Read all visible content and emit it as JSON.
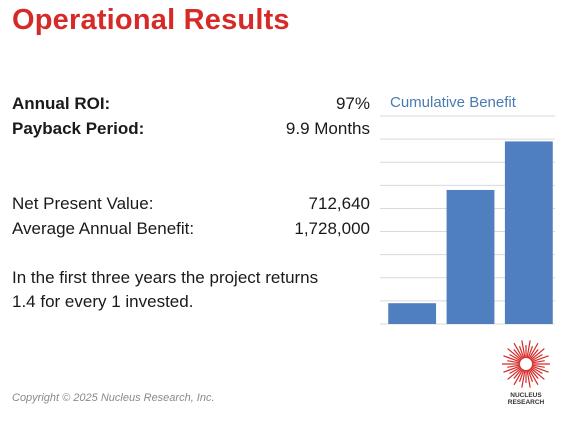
{
  "title": "Operational Results",
  "metrics": {
    "roi": {
      "label": "Annual ROI:",
      "value": "97%"
    },
    "payback": {
      "label": "Payback Period:",
      "value": "9.9 Months"
    },
    "npv": {
      "label": "Net Present Value:",
      "value": "712,640"
    },
    "annual_benefit": {
      "label": "Average Annual Benefit:",
      "value": "1,728,000"
    }
  },
  "summary_line1": "In the first three years the project returns",
  "summary_line2": "1.4 for every 1 invested.",
  "copyright": "Copyright © 2025 Nucleus Research, Inc.",
  "logo": {
    "line1": "NUCLEUS",
    "line2": "RESEARCH",
    "color": "#d62a28"
  },
  "chart_data": {
    "type": "bar",
    "title": "Cumulative Benefit",
    "categories": [
      "",
      "",
      ""
    ],
    "values": [
      0.9,
      5.8,
      7.9
    ],
    "ylim": [
      0,
      9
    ],
    "grid": true,
    "bar_color": "#4f7fbe",
    "grid_color": "#d9d9d9"
  }
}
